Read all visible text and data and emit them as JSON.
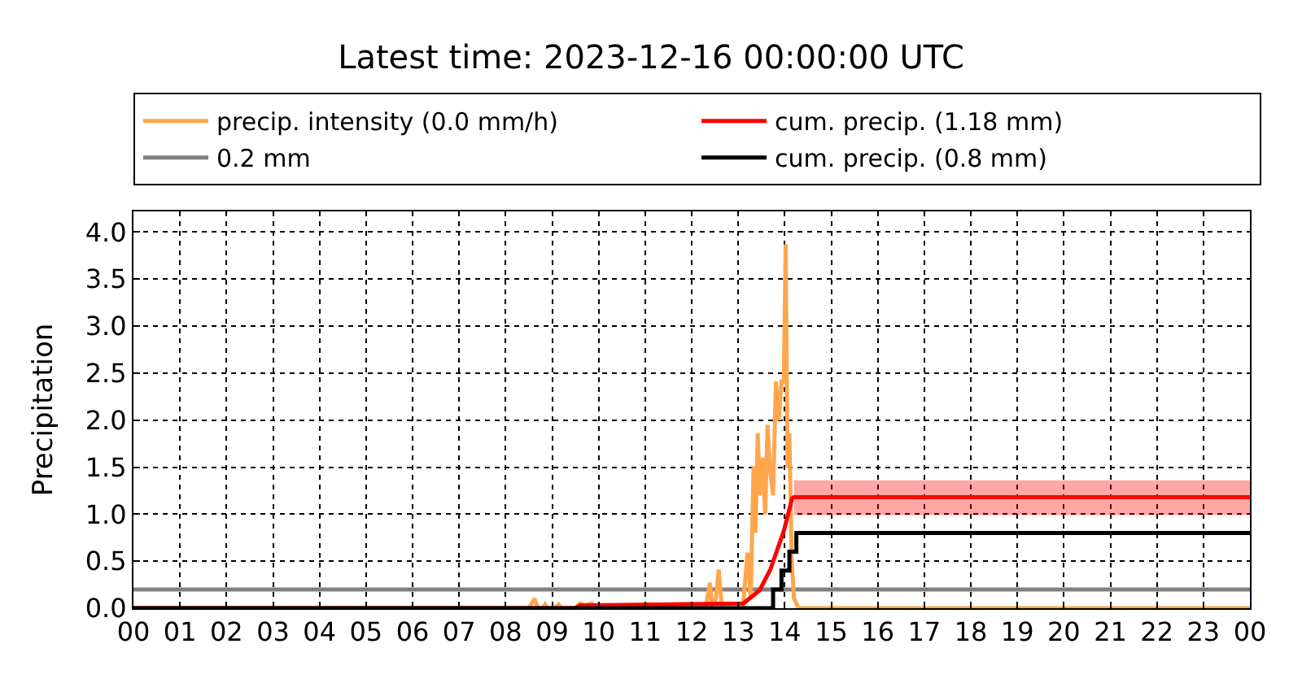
{
  "chart_data": {
    "type": "line",
    "title": "Latest time: 2023-12-16 00:00:00 UTC",
    "ylabel": "Precipitation",
    "xlim": [
      0,
      24
    ],
    "xticks": [
      {
        "value": 0,
        "label": "00"
      },
      {
        "value": 1,
        "label": "01"
      },
      {
        "value": 2,
        "label": "02"
      },
      {
        "value": 3,
        "label": "03"
      },
      {
        "value": 4,
        "label": "04"
      },
      {
        "value": 5,
        "label": "05"
      },
      {
        "value": 6,
        "label": "06"
      },
      {
        "value": 7,
        "label": "07"
      },
      {
        "value": 8,
        "label": "08"
      },
      {
        "value": 9,
        "label": "09"
      },
      {
        "value": 10,
        "label": "10"
      },
      {
        "value": 11,
        "label": "11"
      },
      {
        "value": 12,
        "label": "12"
      },
      {
        "value": 13,
        "label": "13"
      },
      {
        "value": 14,
        "label": "14"
      },
      {
        "value": 15,
        "label": "15"
      },
      {
        "value": 16,
        "label": "16"
      },
      {
        "value": 17,
        "label": "17"
      },
      {
        "value": 18,
        "label": "18"
      },
      {
        "value": 19,
        "label": "19"
      },
      {
        "value": 20,
        "label": "20"
      },
      {
        "value": 21,
        "label": "21"
      },
      {
        "value": 22,
        "label": "22"
      },
      {
        "value": 23,
        "label": "23"
      },
      {
        "value": 24,
        "label": "00"
      }
    ],
    "ylim": [
      0,
      4.22
    ],
    "yticks": [
      {
        "value": 0,
        "label": "0.0"
      },
      {
        "value": 0.5,
        "label": "0.5"
      },
      {
        "value": 1,
        "label": "1.0"
      },
      {
        "value": 1.5,
        "label": "1.5"
      },
      {
        "value": 2,
        "label": "2.0"
      },
      {
        "value": 2.5,
        "label": "2.5"
      },
      {
        "value": 3,
        "label": "3.0"
      },
      {
        "value": 3.5,
        "label": "3.5"
      },
      {
        "value": 4,
        "label": "4.0"
      }
    ],
    "grid": true,
    "legend": "top",
    "ref_lines": [
      {
        "axis": "y",
        "value": 0.2,
        "label": "0.2 mm",
        "color": "#808080"
      }
    ],
    "series": [
      {
        "name": "precip. intensity (0.0 mm/h)",
        "color": "#ffa64d",
        "x": [
          0,
          8.5,
          8.62,
          8.7,
          8.8,
          8.85,
          8.9,
          9.05,
          9.14,
          9.2,
          9.5,
          9.6,
          9.7,
          9.85,
          9.95,
          12.3,
          12.39,
          12.45,
          12.52,
          12.58,
          12.65,
          13.1,
          13.2,
          13.27,
          13.33,
          13.37,
          13.42,
          13.46,
          13.52,
          13.58,
          13.63,
          13.68,
          13.75,
          13.81,
          13.87,
          13.93,
          13.98,
          14.02,
          14.06,
          14.1,
          14.15,
          14.2,
          14.3,
          24
        ],
        "values": [
          0,
          0,
          0.1,
          0,
          0,
          0.04,
          0,
          0,
          0.04,
          0,
          0,
          0.05,
          0.03,
          0.05,
          0,
          0,
          0.27,
          0,
          0.1,
          0.41,
          0,
          0,
          0.59,
          0.1,
          1.51,
          0.8,
          1.86,
          1.2,
          1.6,
          1.0,
          1.95,
          1.5,
          1.2,
          2.41,
          2.0,
          2.41,
          2.41,
          3.87,
          1.5,
          1.86,
          0.5,
          0.1,
          0,
          0
        ]
      },
      {
        "name": "cum. precip. (1.18 mm)",
        "color": "#ff0000",
        "x": [
          0,
          9.5,
          9.6,
          13.11,
          13.46,
          13.69,
          13.98,
          14.16,
          14.2,
          24
        ],
        "values": [
          0,
          0,
          0.03,
          0.05,
          0.19,
          0.41,
          0.82,
          1.17,
          1.18,
          1.18
        ],
        "lower": [
          null,
          null,
          null,
          null,
          null,
          null,
          null,
          null,
          0.99,
          0.99
        ],
        "upper": [
          null,
          null,
          null,
          null,
          null,
          null,
          null,
          null,
          1.36,
          1.36
        ]
      },
      {
        "name": "cum. precip. (0.8 mm)",
        "color": "#000000",
        "type": "step",
        "x": [
          0,
          13.75,
          13.93,
          14.1,
          14.25,
          24
        ],
        "values": [
          0,
          0.2,
          0.4,
          0.6,
          0.8,
          0.8
        ]
      }
    ]
  }
}
